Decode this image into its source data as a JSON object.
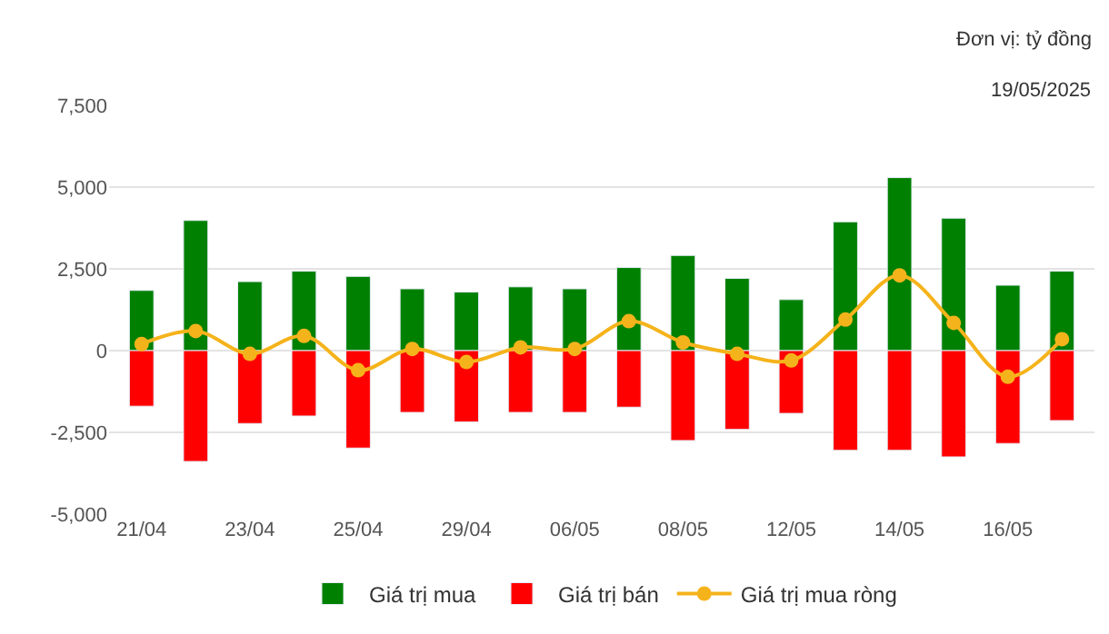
{
  "chart_data": {
    "type": "bar",
    "categories": [
      "21/04",
      null,
      "23/04",
      null,
      "25/04",
      null,
      "29/04",
      null,
      "06/05",
      null,
      "08/05",
      null,
      "12/05",
      null,
      "14/05",
      null,
      "16/05",
      null
    ],
    "series": [
      {
        "name": "Giá trị mua",
        "color": "#008000",
        "values": [
          1840,
          3980,
          2110,
          2430,
          2270,
          1890,
          1790,
          1950,
          1890,
          2540,
          2910,
          2210,
          1560,
          3940,
          5290,
          4050,
          2000,
          2430
        ]
      },
      {
        "name": "Giá trị bán",
        "color": "#ff0000",
        "values": [
          -1700,
          -3390,
          -2230,
          -2000,
          -2980,
          -1890,
          -2180,
          -1890,
          -1890,
          -1730,
          -2750,
          -2410,
          -1920,
          -3050,
          -3050,
          -3250,
          -2840,
          -2140
        ]
      },
      {
        "name": "Giá trị mua ròng",
        "type": "line",
        "color": "#f5b31b",
        "values": [
          200,
          600,
          -100,
          450,
          -600,
          50,
          -350,
          100,
          50,
          900,
          250,
          -100,
          -300,
          950,
          2300,
          850,
          -800,
          350
        ]
      }
    ],
    "ylim": [
      -5000,
      7500
    ],
    "yticks": [
      {
        "value": -5000,
        "label": "-5,000"
      },
      {
        "value": -2500,
        "label": "-2,500"
      },
      0,
      {
        "value": 2500,
        "label": "2,500"
      },
      {
        "value": 5000,
        "label": "5,000"
      },
      {
        "value": 7500,
        "label": "7,500"
      }
    ],
    "annotations": [
      "Đơn vị: tỷ đồng",
      "19/05/2025"
    ],
    "stacked": true,
    "grid": "y",
    "legend": "bottom",
    "marker": "circle"
  }
}
